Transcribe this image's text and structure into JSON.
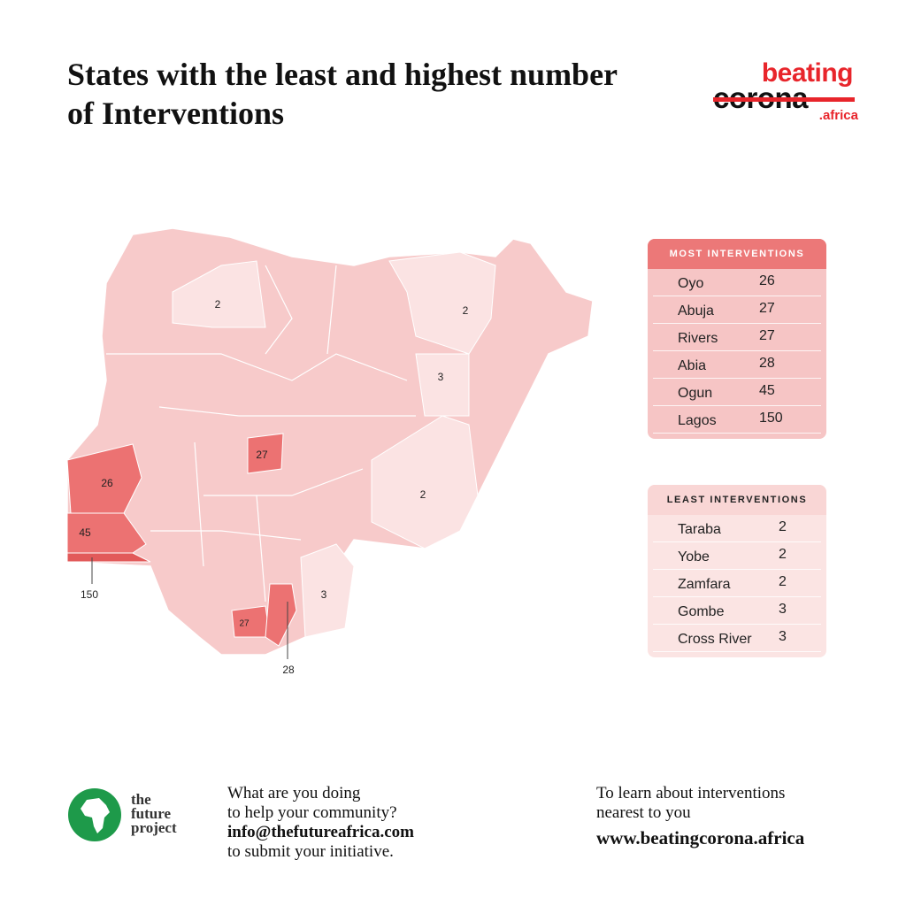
{
  "title": "States with the least and highest number of Interventions",
  "logo": {
    "line1": "beating",
    "line2": "corona",
    "line3": ".africa"
  },
  "map_labels": [
    {
      "state": "Zamfara",
      "value": 2
    },
    {
      "state": "Yobe",
      "value": 2
    },
    {
      "state": "Gombe",
      "value": 3
    },
    {
      "state": "Taraba",
      "value": 2
    },
    {
      "state": "Abuja",
      "value": 27
    },
    {
      "state": "Oyo",
      "value": 26
    },
    {
      "state": "Ogun",
      "value": 45
    },
    {
      "state": "Lagos",
      "value": 150
    },
    {
      "state": "Rivers",
      "value": 27
    },
    {
      "state": "Abia",
      "value": 28
    },
    {
      "state": "Cross River",
      "value": 3
    }
  ],
  "most": {
    "heading": "MOST INTERVENTIONS",
    "rows": [
      [
        "Oyo",
        26
      ],
      [
        "Abuja",
        27
      ],
      [
        "Rivers",
        27
      ],
      [
        "Abia",
        28
      ],
      [
        "Ogun",
        45
      ],
      [
        "Lagos",
        150
      ]
    ]
  },
  "least": {
    "heading": "LEAST INTERVENTIONS",
    "rows": [
      [
        "Taraba",
        2
      ],
      [
        "Yobe",
        2
      ],
      [
        "Zamfara",
        2
      ],
      [
        "Gombe",
        3
      ],
      [
        "Cross River",
        3
      ]
    ]
  },
  "footer": {
    "org": [
      "the",
      "future",
      "project"
    ],
    "prompt": [
      "What are you doing",
      "to help your community?",
      "info@thefutureafrica.com",
      "to submit your initiative."
    ],
    "learn": [
      "To learn about interventions",
      "nearest to you",
      "www.beatingcorona.africa"
    ]
  }
}
